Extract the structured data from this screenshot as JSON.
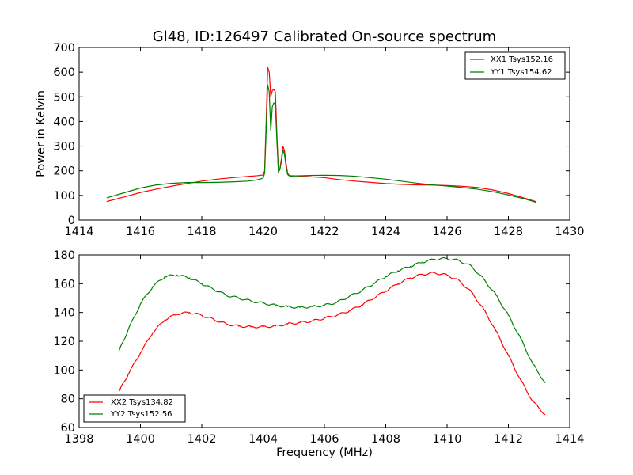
{
  "figure": {
    "title": "Gl48, ID:126497 Calibrated On-source spectrum",
    "xlabel": "Frequency (MHz)",
    "ylabel": "Power in Kelvin"
  },
  "chart_data": [
    {
      "type": "line",
      "xlim": [
        1414,
        1430
      ],
      "ylim": [
        0,
        700
      ],
      "xticks": [
        "1414",
        "1416",
        "1418",
        "1420",
        "1422",
        "1424",
        "1426",
        "1428",
        "1430"
      ],
      "yticks": [
        "0",
        "100",
        "200",
        "300",
        "400",
        "500",
        "600",
        "700"
      ],
      "legend": "top-right",
      "grid": false,
      "series": [
        {
          "name": "XX1 Tsys152.16",
          "color": "#ff0000",
          "x": [
            1414.9,
            1415.5,
            1416.0,
            1416.5,
            1417.0,
            1417.5,
            1418.0,
            1418.5,
            1419.0,
            1419.5,
            1419.8,
            1420.0,
            1420.05,
            1420.1,
            1420.15,
            1420.2,
            1420.25,
            1420.3,
            1420.35,
            1420.4,
            1420.45,
            1420.5,
            1420.55,
            1420.6,
            1420.65,
            1420.7,
            1420.75,
            1420.8,
            1420.85,
            1420.9,
            1421.0,
            1421.5,
            1422.0,
            1422.5,
            1423.0,
            1423.5,
            1424.0,
            1424.5,
            1425.0,
            1425.5,
            1426.0,
            1426.5,
            1427.0,
            1427.5,
            1428.0,
            1428.5,
            1428.9
          ],
          "y": [
            75,
            95,
            112,
            125,
            137,
            148,
            158,
            166,
            172,
            177,
            180,
            183,
            200,
            400,
            620,
            600,
            500,
            525,
            530,
            520,
            350,
            195,
            210,
            250,
            300,
            280,
            230,
            190,
            182,
            180,
            180,
            176,
            172,
            164,
            158,
            153,
            148,
            145,
            143,
            142,
            140,
            137,
            132,
            122,
            108,
            90,
            75
          ]
        },
        {
          "name": "YY1 Tsys154.62",
          "color": "#008000",
          "x": [
            1414.9,
            1415.5,
            1416.0,
            1416.5,
            1417.0,
            1417.5,
            1418.0,
            1418.5,
            1419.0,
            1419.5,
            1419.8,
            1420.0,
            1420.05,
            1420.1,
            1420.15,
            1420.2,
            1420.25,
            1420.3,
            1420.35,
            1420.4,
            1420.45,
            1420.5,
            1420.55,
            1420.6,
            1420.65,
            1420.7,
            1420.75,
            1420.8,
            1420.85,
            1420.9,
            1421.0,
            1421.5,
            1422.0,
            1422.5,
            1423.0,
            1423.5,
            1424.0,
            1424.5,
            1425.0,
            1425.5,
            1426.0,
            1426.5,
            1427.0,
            1427.5,
            1428.0,
            1428.5,
            1428.9
          ],
          "y": [
            90,
            112,
            130,
            142,
            149,
            152,
            152,
            153,
            155,
            158,
            163,
            170,
            190,
            360,
            550,
            520,
            360,
            460,
            475,
            470,
            320,
            195,
            205,
            240,
            285,
            265,
            215,
            185,
            180,
            178,
            179,
            181,
            182,
            181,
            178,
            172,
            166,
            158,
            150,
            143,
            138,
            132,
            125,
            115,
            102,
            87,
            72
          ]
        }
      ]
    },
    {
      "type": "line",
      "xlim": [
        1398,
        1414
      ],
      "ylim": [
        60,
        180
      ],
      "xticks": [
        "1398",
        "1400",
        "1402",
        "1404",
        "1406",
        "1408",
        "1410",
        "1412",
        "1414"
      ],
      "yticks": [
        "60",
        "80",
        "100",
        "120",
        "140",
        "160",
        "180"
      ],
      "legend": "bottom-left",
      "grid": false,
      "series": [
        {
          "name": "XX2 Tsys134.82",
          "color": "#ff0000",
          "x": [
            1399.3,
            1399.6,
            1400.0,
            1400.4,
            1400.8,
            1401.2,
            1401.6,
            1402.0,
            1402.4,
            1402.8,
            1403.2,
            1403.6,
            1404.0,
            1404.4,
            1404.8,
            1405.2,
            1405.6,
            1406.0,
            1406.4,
            1406.8,
            1407.2,
            1407.6,
            1408.0,
            1408.4,
            1408.8,
            1409.2,
            1409.6,
            1410.0,
            1410.4,
            1410.8,
            1411.2,
            1411.6,
            1412.0,
            1412.4,
            1412.8,
            1413.2
          ],
          "y": [
            85,
            97,
            112,
            126,
            135,
            139,
            140,
            138,
            135,
            132,
            130.5,
            130,
            130,
            130.5,
            132,
            133,
            134,
            136,
            138,
            141,
            145,
            150,
            155,
            160,
            164,
            166.5,
            167.5,
            166,
            162,
            154,
            142,
            127,
            110,
            93,
            78,
            69
          ]
        },
        {
          "name": "YY2 Tsys152.56",
          "color": "#008000",
          "x": [
            1399.3,
            1399.6,
            1400.0,
            1400.4,
            1400.8,
            1401.2,
            1401.6,
            1402.0,
            1402.4,
            1402.8,
            1403.2,
            1403.6,
            1404.0,
            1404.4,
            1404.8,
            1405.2,
            1405.6,
            1406.0,
            1406.4,
            1406.8,
            1407.2,
            1407.6,
            1408.0,
            1408.4,
            1408.8,
            1409.2,
            1409.6,
            1410.0,
            1410.4,
            1410.8,
            1411.2,
            1411.6,
            1412.0,
            1412.4,
            1412.8,
            1413.2
          ],
          "y": [
            113,
            128,
            146,
            158,
            165,
            166,
            164,
            160,
            156,
            152,
            150,
            148,
            146.5,
            145,
            144,
            143.5,
            144,
            145,
            147,
            151,
            155,
            160,
            165,
            169,
            172,
            175,
            177,
            177.5,
            176,
            172,
            163,
            152,
            138,
            122,
            104,
            91
          ]
        }
      ]
    }
  ]
}
